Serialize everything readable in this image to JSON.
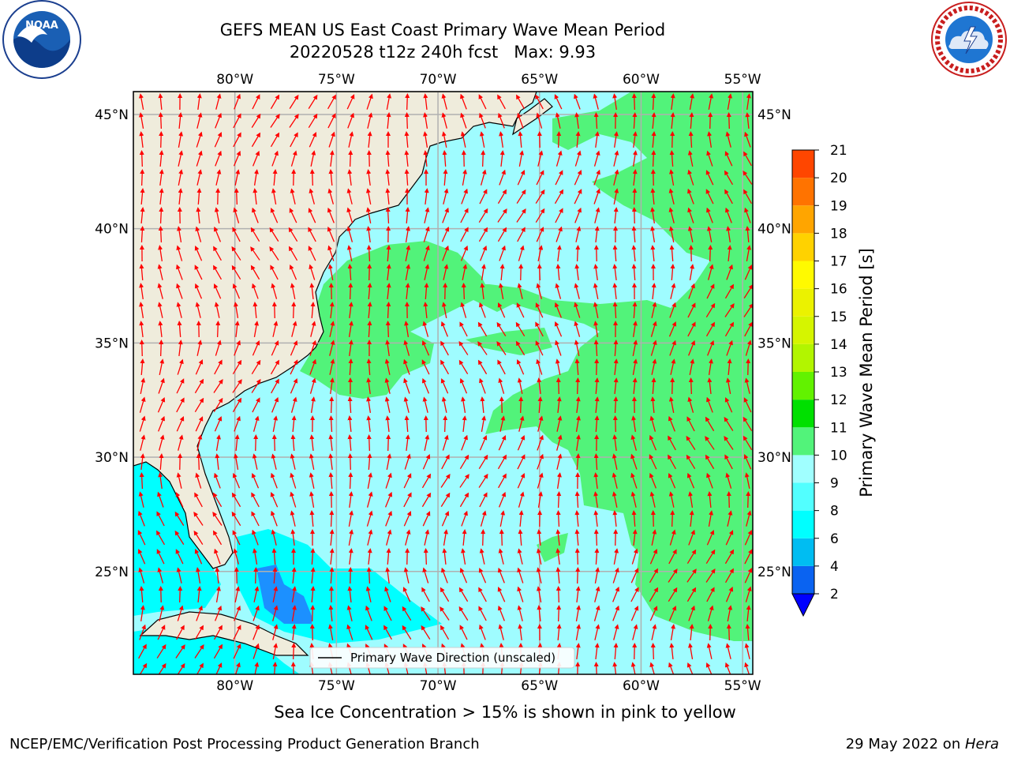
{
  "title": {
    "line1": "GEFS MEAN US East Coast Primary Wave Mean Period",
    "line2": "20220528 t12z 240h fcst   Max: 9.93"
  },
  "logos": {
    "left": "NOAA",
    "right": "NATIONAL WEATHER SERVICE"
  },
  "map": {
    "lon_labels": [
      "80°W",
      "75°W",
      "70°W",
      "65°W",
      "60°W",
      "55°W"
    ],
    "lon_values": [
      -80,
      -75,
      -70,
      -65,
      -60,
      -55
    ],
    "lat_labels": [
      "45°N",
      "40°N",
      "35°N",
      "30°N",
      "25°N"
    ],
    "lat_values": [
      45,
      40,
      35,
      30,
      25
    ],
    "extent": {
      "lon_min": -85,
      "lon_max": -54.5,
      "lat_min": 20.5,
      "lat_max": 46
    },
    "legend_label": "Primary Wave Direction (unscaled)",
    "colors": {
      "land": "#efecdc",
      "ocean_low": "#9ffcff",
      "ocean_mid": "#52f37a",
      "shelf": "#00ffff",
      "deep_shelf": "#1c90ff",
      "arrow": "#ff0000",
      "grid": "#b0b0b0"
    }
  },
  "colorbar": {
    "label": "Primary Wave Mean Period [s]",
    "ticks": [
      "2",
      "4",
      "6",
      "8",
      "9",
      "10",
      "11",
      "12",
      "13",
      "14",
      "15",
      "16",
      "17",
      "18",
      "19",
      "20",
      "21"
    ],
    "colors": [
      "#0a63f1",
      "#00bdf2",
      "#00ffff",
      "#52ffff",
      "#a0ffff",
      "#52f37a",
      "#00e000",
      "#62f200",
      "#b2f500",
      "#d5f500",
      "#ebf200",
      "#fffa00",
      "#ffd200",
      "#ffa500",
      "#ff7300",
      "#ff4600",
      "#ff0000"
    ],
    "extend_color": "#0000ff"
  },
  "ice_note": "Sea Ice Concentration > 15% is shown in pink to yellow",
  "footer": {
    "left": "NCEP/EMC/Verification Post Processing Product Generation Branch",
    "date": "29 May 2022 on ",
    "host": "Hera"
  }
}
